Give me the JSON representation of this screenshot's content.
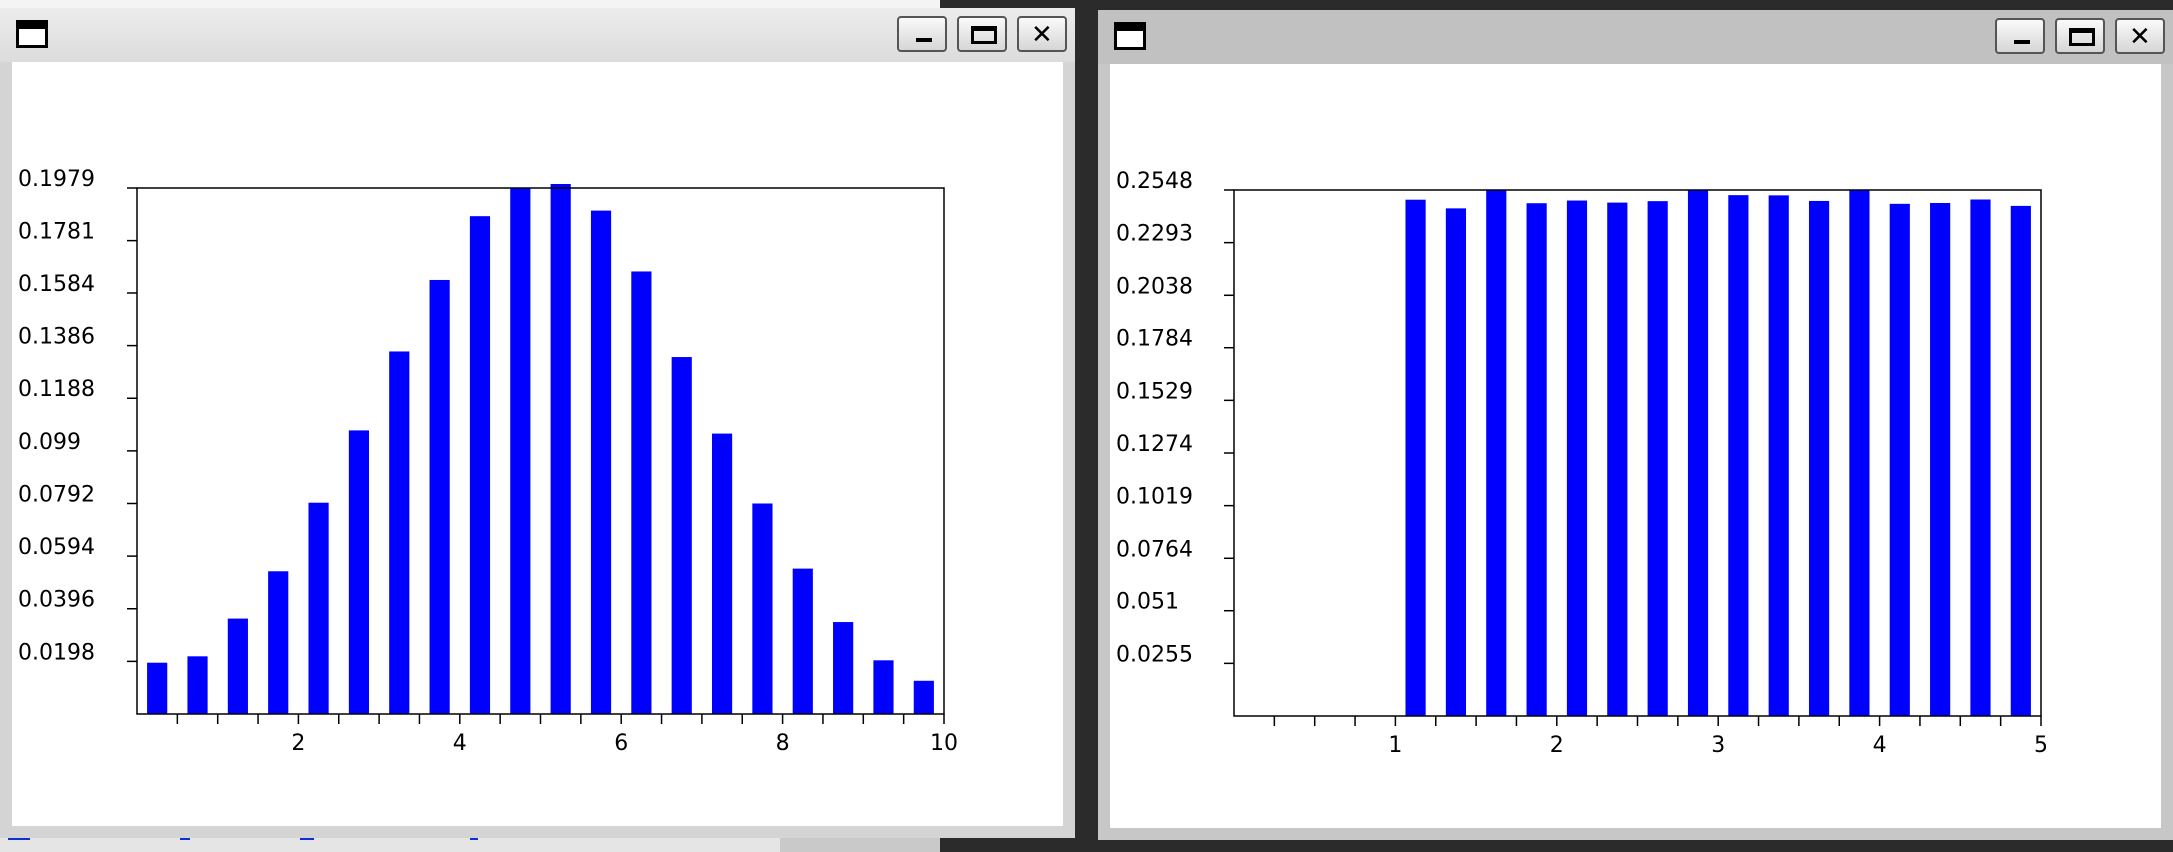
{
  "windows": [
    {
      "id": "left",
      "controls": {
        "minimize_icon": "minimize-icon",
        "maximize_icon": "maximize-icon",
        "close_icon": "close-icon"
      },
      "chart_data": {
        "type": "bar",
        "bar_color": "#0000ff",
        "xlim": [
          0,
          10
        ],
        "ylim": [
          0,
          0.1979
        ],
        "x_ticks": [
          2,
          4,
          6,
          8,
          10
        ],
        "x_tick_labels": [
          "2",
          "4",
          "6",
          "8",
          "10"
        ],
        "x_minor_ticks": [
          0.5,
          1,
          1.5,
          2,
          2.5,
          3,
          3.5,
          4,
          4.5,
          5,
          5.5,
          6,
          6.5,
          7,
          7.5,
          8,
          8.5,
          9,
          9.5,
          10
        ],
        "y_ticks": [
          0.0198,
          0.0396,
          0.0594,
          0.0792,
          0.099,
          0.1188,
          0.1386,
          0.1584,
          0.1781,
          0.1979
        ],
        "y_tick_labels": [
          "0.0198",
          "0.0396",
          "0.0594",
          "0.0792",
          "0.099",
          "0.1188",
          "0.1386",
          "0.1584",
          "0.1781",
          "0.1979"
        ],
        "bar_width": 0.25,
        "x": [
          0.25,
          0.75,
          1.25,
          1.75,
          2.25,
          2.75,
          3.25,
          3.75,
          4.25,
          4.75,
          5.25,
          5.75,
          6.25,
          6.75,
          7.25,
          7.75,
          8.25,
          8.75,
          9.25,
          9.75
        ],
        "values": [
          0.0193,
          0.0217,
          0.0359,
          0.0537,
          0.0795,
          0.1067,
          0.1364,
          0.1633,
          0.1873,
          0.1979,
          0.2,
          0.1894,
          0.1665,
          0.1343,
          0.1055,
          0.0792,
          0.0547,
          0.0346,
          0.0202,
          0.0125
        ]
      }
    },
    {
      "id": "right",
      "controls": {
        "minimize_icon": "minimize-icon",
        "maximize_icon": "maximize-icon",
        "close_icon": "close-icon"
      },
      "chart_data": {
        "type": "bar",
        "bar_color": "#0000ff",
        "xlim": [
          0,
          5
        ],
        "ylim": [
          0,
          0.2548
        ],
        "x_ticks": [
          1,
          2,
          3,
          4,
          5
        ],
        "x_tick_labels": [
          "1",
          "2",
          "3",
          "4",
          "5"
        ],
        "x_minor_ticks": [
          0.25,
          0.5,
          0.75,
          1,
          1.25,
          1.5,
          1.75,
          2,
          2.25,
          2.5,
          2.75,
          3,
          3.25,
          3.5,
          3.75,
          4,
          4.25,
          4.5,
          4.75,
          5
        ],
        "y_ticks": [
          0.0255,
          0.051,
          0.0764,
          0.1019,
          0.1274,
          0.1529,
          0.1784,
          0.2038,
          0.2293,
          0.2548
        ],
        "y_tick_labels": [
          "0.0255",
          "0.051",
          "0.0764",
          "0.1019",
          "0.1274",
          "0.1529",
          "0.1784",
          "0.2038",
          "0.2293",
          "0.2548"
        ],
        "bar_width": 0.125,
        "x": [
          1.125,
          1.375,
          1.625,
          1.875,
          2.125,
          2.375,
          2.625,
          2.875,
          3.125,
          3.375,
          3.625,
          3.875,
          4.125,
          4.375,
          4.625,
          4.875
        ],
        "values": [
          0.2501,
          0.2459,
          0.2548,
          0.2484,
          0.2497,
          0.2487,
          0.2494,
          0.2548,
          0.2523,
          0.2522,
          0.2495,
          0.2548,
          0.2481,
          0.2485,
          0.2502,
          0.2471
        ]
      }
    }
  ]
}
